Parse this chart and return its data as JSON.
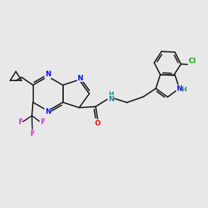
{
  "background_color": "#e8e8e8",
  "bond_color": "#1a1a1a",
  "atom_colors": {
    "N": "#1010ee",
    "O": "#ee1010",
    "F": "#cc33cc",
    "Cl": "#22aa22",
    "NH": "#228888",
    "C": "#1a1a1a"
  },
  "font_size": 7.2,
  "lw": 1.3
}
